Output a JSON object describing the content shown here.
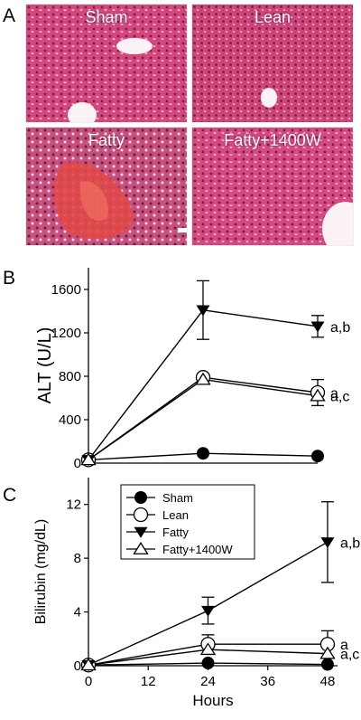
{
  "panel_labels": {
    "a": "A",
    "b": "B",
    "c": "C"
  },
  "histology": [
    {
      "label": "Sham"
    },
    {
      "label": "Lean"
    },
    {
      "label": "Fatty"
    },
    {
      "label": "Fatty+1400W"
    }
  ],
  "colors": {
    "tissue": "#d2487e",
    "tissue_dark": "#8e1f4c",
    "hemorrhage": "#e04848",
    "vessel": "#fbf2f5"
  },
  "chart_data": [
    {
      "type": "line",
      "panel": "B",
      "ylabel": "ALT (U/L)",
      "xlabel": "",
      "x": [
        0,
        24,
        48
      ],
      "xlim": [
        0,
        48
      ],
      "ylim": [
        0,
        1800
      ],
      "yticks": [
        "0",
        "400",
        "800",
        "1200",
        "1600"
      ],
      "ytick_values": [
        0,
        400,
        800,
        1200,
        1600
      ],
      "xticks_shown": false,
      "series": [
        {
          "name": "Sham",
          "marker": "filled-circle",
          "values": [
            30,
            90,
            65
          ],
          "errors": [
            0,
            0,
            0
          ],
          "annotation": ""
        },
        {
          "name": "Lean",
          "marker": "open-circle",
          "values": [
            30,
            790,
            650
          ],
          "errors": [
            0,
            0,
            120
          ],
          "annotation": "a"
        },
        {
          "name": "Fatty",
          "marker": "filled-triangle-down",
          "values": [
            30,
            1410,
            1260
          ],
          "errors": [
            0,
            270,
            100
          ],
          "annotation": "a,b"
        },
        {
          "name": "Fatty+1400W",
          "marker": "open-triangle-up",
          "values": [
            30,
            770,
            620
          ],
          "errors": [
            0,
            0,
            0
          ],
          "annotation": "a,c"
        }
      ]
    },
    {
      "type": "line",
      "panel": "C",
      "ylabel": "Bilirubin  (mg/dL)",
      "xlabel": "Hours",
      "x": [
        0,
        24,
        48
      ],
      "xlim": [
        0,
        50
      ],
      "ylim": [
        0,
        14
      ],
      "yticks": [
        "0",
        "4",
        "8",
        "12"
      ],
      "ytick_values": [
        0,
        4,
        8,
        12
      ],
      "xticks": [
        "0",
        "12",
        "24",
        "36",
        "48"
      ],
      "xtick_values": [
        0,
        12,
        24,
        36,
        48
      ],
      "xticks_shown": true,
      "legend_position": "top-left",
      "series": [
        {
          "name": "Sham",
          "marker": "filled-circle",
          "values": [
            0.05,
            0.2,
            0.1
          ],
          "errors": [
            0,
            0,
            0
          ],
          "annotation": ""
        },
        {
          "name": "Lean",
          "marker": "open-circle",
          "values": [
            0.05,
            1.6,
            1.6
          ],
          "errors": [
            0,
            0.7,
            1.0
          ],
          "annotation": "a"
        },
        {
          "name": "Fatty",
          "marker": "filled-triangle-down",
          "values": [
            0.05,
            4.1,
            9.2
          ],
          "errors": [
            0,
            1.0,
            3.0
          ],
          "annotation": "a,b"
        },
        {
          "name": "Fatty+1400W",
          "marker": "open-triangle-up",
          "values": [
            0.05,
            1.2,
            0.9
          ],
          "errors": [
            0,
            0,
            0
          ],
          "annotation": "a,c"
        }
      ]
    }
  ]
}
